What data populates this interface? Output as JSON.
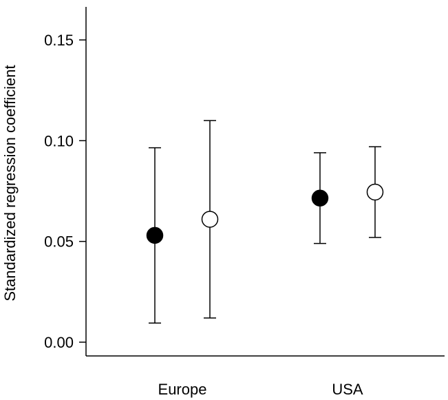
{
  "chart_data": {
    "type": "scatter",
    "title": "",
    "xlabel": "",
    "ylabel": "Standardized regression coefficient",
    "ylim": [
      -0.005,
      0.165
    ],
    "yticks": [
      "0.00",
      "0.05",
      "0.10",
      "0.15"
    ],
    "categories": [
      "Europe",
      "USA"
    ],
    "grid": false,
    "legend": "none",
    "series": [
      {
        "fill": "#000000",
        "points": [
          {
            "category": "Europe",
            "y": 0.053,
            "low": 0.0095,
            "high": 0.0965
          },
          {
            "category": "USA",
            "y": 0.0715,
            "low": 0.049,
            "high": 0.094
          }
        ]
      },
      {
        "fill": "#ffffff",
        "points": [
          {
            "category": "Europe",
            "y": 0.061,
            "low": 0.012,
            "high": 0.11
          },
          {
            "category": "USA",
            "y": 0.0745,
            "low": 0.052,
            "high": 0.097
          }
        ]
      }
    ]
  }
}
